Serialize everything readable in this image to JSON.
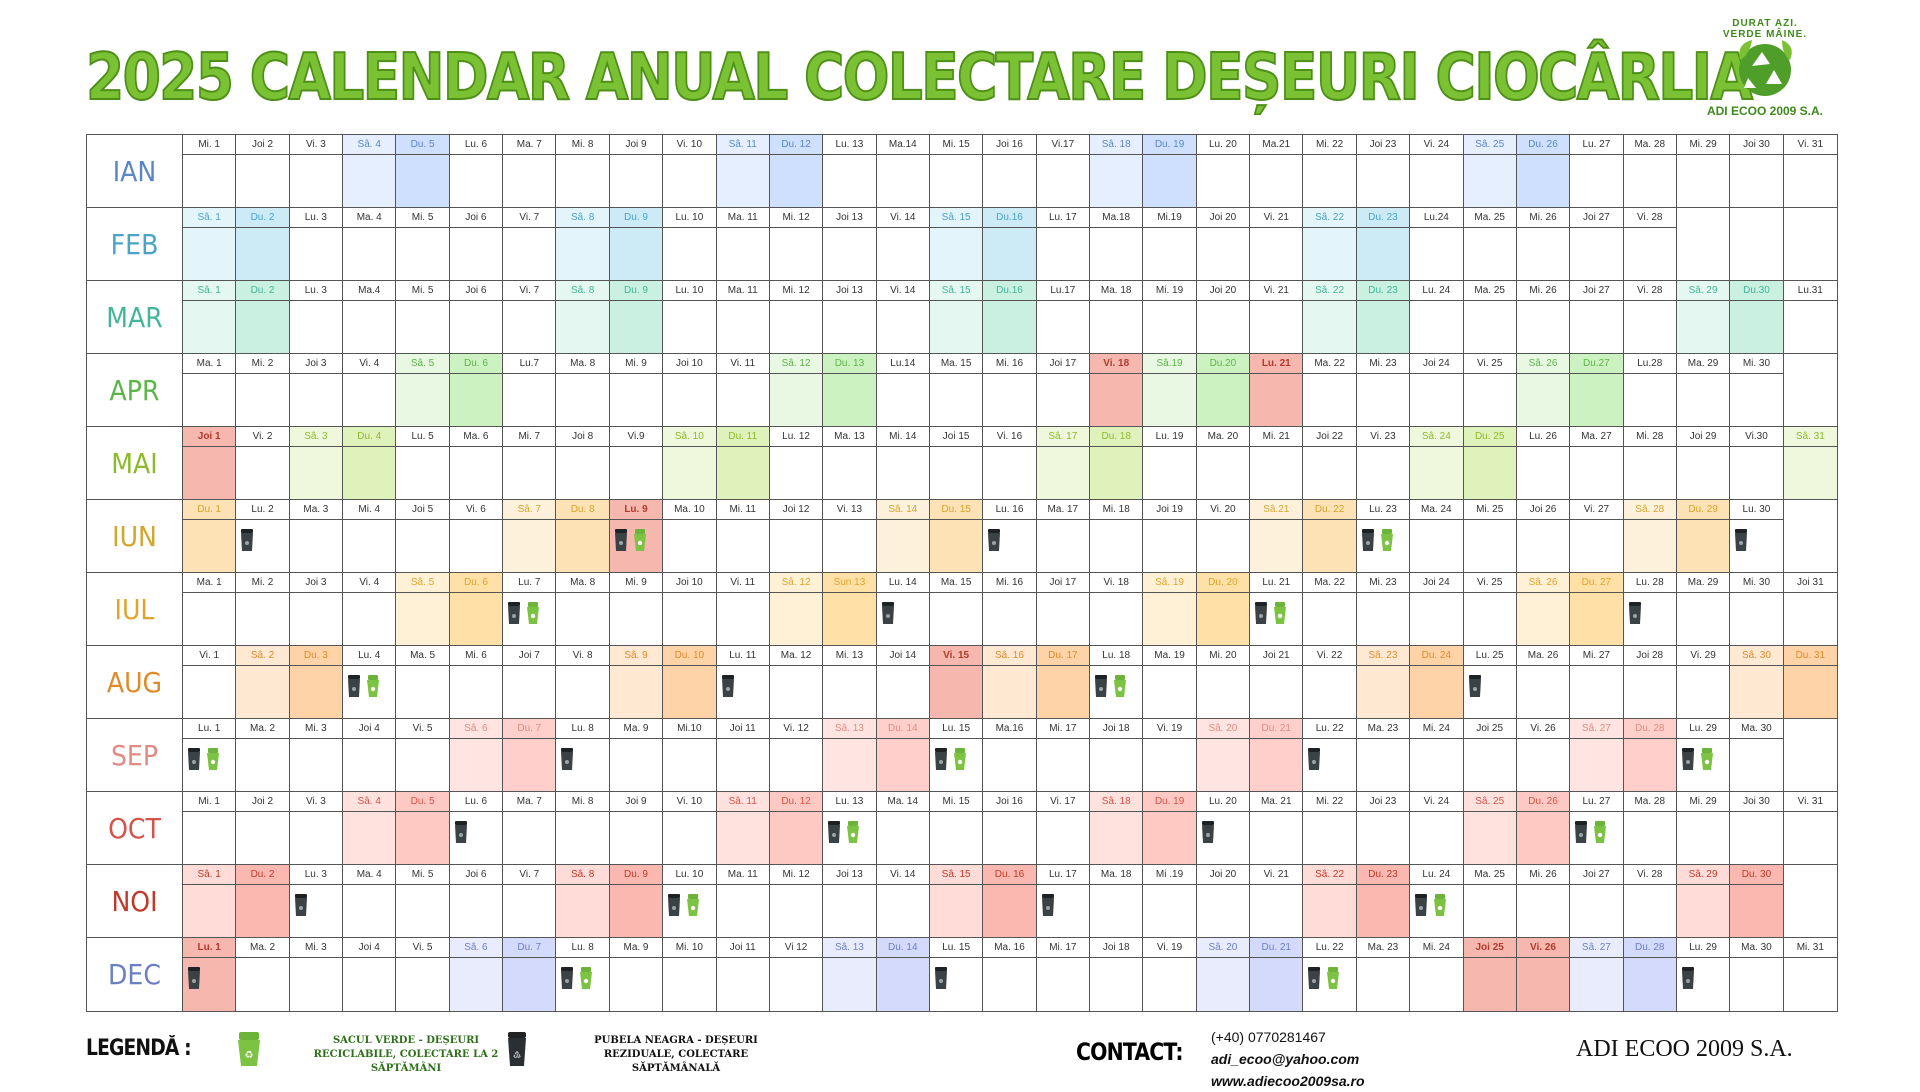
{
  "title": "2025 CALENDAR ANUAL COLECTARE DEȘEURI CIOCÂRLIA",
  "logo": {
    "arc_text": "DURAT AZI. VERDE MÂINE.",
    "caption": "ADI ECOO 2009 S.A."
  },
  "colors": {
    "title_green": "#7ac133",
    "green_bin": "#7cc243",
    "black_bin": "#3b4246",
    "holiday_fill": "#f5b7ae"
  },
  "months": [
    {
      "name": "IAN",
      "color": "#5b86c5",
      "wfill": [
        "#e6efff",
        "#cfe0ff"
      ],
      "days": [
        "Mi. 1",
        "Joi 2",
        "Vi. 3",
        "Sâ. 4",
        "Du. 5",
        "Lu. 6",
        "Ma. 7",
        "Mi. 8",
        "Joi 9",
        "Vi. 10",
        "Sâ. 11",
        "Du. 12",
        "Lu. 13",
        "Ma.14",
        "Mi. 15",
        "Joi 16",
        "Vi.17",
        "Sâ. 18",
        "Du. 19",
        "Lu. 20",
        "Ma.21",
        "Mi. 22",
        "Joi 23",
        "Vi. 24",
        "Sâ. 25",
        "Du. 26",
        "Lu. 27",
        "Ma. 28",
        "Mi. 29",
        "Joi 30",
        "Vi. 31"
      ],
      "bins": {}
    },
    {
      "name": "FEB",
      "color": "#4aa3c8",
      "wfill": [
        "#e4f4fb",
        "#cdebf7"
      ],
      "days": [
        "Sâ. 1",
        "Du. 2",
        "Lu. 3",
        "Ma. 4",
        "Mi. 5",
        "Joi 6",
        "Vi. 7",
        "Sâ. 8",
        "Du. 9",
        "Lu. 10",
        "Ma. 11",
        "Mi. 12",
        "Joi 13",
        "Vi. 14",
        "Sâ. 15",
        "Du.16",
        "Lu. 17",
        "Ma.18",
        "Mi.19",
        "Joi 20",
        "Vi. 21",
        "Sâ. 22",
        "Du. 23",
        "Lu.24",
        "Ma. 25",
        "Mi. 26",
        "Joi 27",
        "Vi. 28"
      ],
      "bins": {}
    },
    {
      "name": "MAR",
      "color": "#43b69a",
      "wfill": [
        "#e4f7f0",
        "#c9f0e0"
      ],
      "days": [
        "Sâ. 1",
        "Du. 2",
        "Lu. 3",
        "Ma.4",
        "Mi. 5",
        "Joi 6",
        "Vi. 7",
        "Sâ. 8",
        "Du. 9",
        "Lu. 10",
        "Ma. 11",
        "Mi. 12",
        "Joi 13",
        "Vi. 14",
        "Sâ. 15",
        "Du.16",
        "Lu.17",
        "Ma. 18",
        "Mi. 19",
        "Joi 20",
        "Vi. 21",
        "Sâ. 22",
        "Du. 23",
        "Lu. 24",
        "Ma. 25",
        "Mi. 26",
        "Joi 27",
        "Vi. 28",
        "Sâ. 29",
        "Du.30",
        "Lu.31"
      ],
      "bins": {}
    },
    {
      "name": "APR",
      "color": "#5cb548",
      "wfill": [
        "#e8f8e2",
        "#cdf2c2"
      ],
      "days": [
        "Ma. 1",
        "Mi. 2",
        "Joi 3",
        "Vi. 4",
        "Sâ. 5",
        "Du. 6",
        "Lu.7",
        "Ma. 8",
        "Mi. 9",
        "Joi 10",
        "Vi. 11",
        "Sâ. 12",
        "Du. 13",
        "Lu.14",
        "Ma. 15",
        "Mi. 16",
        "Joi 17",
        "Vi. 18",
        "Sâ.19",
        "Du.20",
        "Lu. 21",
        "Ma. 22",
        "Mi. 23",
        "Joi 24",
        "Vi. 25",
        "Sâ. 26",
        "Du.27",
        "Lu.28",
        "Ma. 29",
        "Mi. 30"
      ],
      "holidays": [
        18,
        21
      ],
      "bins": {}
    },
    {
      "name": "MAI",
      "color": "#8cba2a",
      "wfill": [
        "#eff8dc",
        "#e0f2bb"
      ],
      "days": [
        "Joi 1",
        "Vi. 2",
        "Sâ. 3",
        "Du. 4",
        "Lu. 5",
        "Ma. 6",
        "Mi. 7",
        "Joi 8",
        "Vi.9",
        "Sâ. 10",
        "Du. 11",
        "Lu. 12",
        "Ma. 13",
        "Mi. 14",
        "Joi 15",
        "Vi. 16",
        "Sâ. 17",
        "Du. 18",
        "Lu. 19",
        "Ma. 20",
        "Mi. 21",
        "Joi 22",
        "Vi. 23",
        "Sâ. 24",
        "Du. 25",
        "Lu. 26",
        "Ma. 27",
        "Mi. 28",
        "Joi 29",
        "Vi.30",
        "Sâ. 31"
      ],
      "holidays": [
        1
      ],
      "bins": {}
    },
    {
      "name": "IUN",
      "color": "#d4a52c",
      "wfill": [
        "#fdf1dc",
        "#fce2b4"
      ],
      "days": [
        "Du. 1",
        "Lu. 2",
        "Ma. 3",
        "Mi. 4",
        "Joi 5",
        "Vi. 6",
        "Sâ. 7",
        "Du. 8",
        "Lu. 9",
        "Ma. 10",
        "Mi. 11",
        "Joi 12",
        "Vi. 13",
        "Sâ. 14",
        "Du. 15",
        "Lu. 16",
        "Ma. 17",
        "Mi. 18",
        "Joi 19",
        "Vi. 20",
        "Sâ.21",
        "Du. 22",
        "Lu. 23",
        "Ma. 24",
        "Mi. 25",
        "Joi 26",
        "Vi. 27",
        "Sâ. 28",
        "Du. 29",
        "Lu. 30"
      ],
      "holidays": [
        9
      ],
      "bins": {
        "2": "b",
        "9": "bg",
        "16": "b",
        "23": "bg",
        "30": "b"
      }
    },
    {
      "name": "IUL",
      "color": "#e0a42a",
      "wfill": [
        "#fff1d6",
        "#ffe0a6"
      ],
      "days": [
        "Ma. 1",
        "Mi. 2",
        "Joi 3",
        "Vi. 4",
        "Sâ. 5",
        "Du. 6",
        "Lu. 7",
        "Ma. 8",
        "Mi. 9",
        "Joi 10",
        "Vi. 11",
        "Sâ. 12",
        "Sun 13",
        "Lu. 14",
        "Ma. 15",
        "Mi. 16",
        "Joi 17",
        "Vi. 18",
        "Sâ. 19",
        "Du. 20",
        "Lu. 21",
        "Ma. 22",
        "Mi. 23",
        "Joi 24",
        "Vi. 25",
        "Sâ. 26",
        "Du. 27",
        "Lu. 28",
        "Ma. 29",
        "Mi. 30",
        "Joi 31"
      ],
      "bins": {
        "7": "bg",
        "14": "b",
        "21": "bg",
        "28": "b"
      }
    },
    {
      "name": "AUG",
      "color": "#e08b2a",
      "wfill": [
        "#ffe9d3",
        "#ffd3a8"
      ],
      "days": [
        "Vi. 1",
        "Sâ. 2",
        "Du. 3",
        "Lu. 4",
        "Ma. 5",
        "Mi. 6",
        "Joi 7",
        "Vi. 8",
        "Sâ. 9",
        "Du. 10",
        "Lu. 11",
        "Ma. 12",
        "Mi. 13",
        "Joi 14",
        "Vi. 15",
        "Sâ. 16",
        "Du. 17",
        "Lu. 18",
        "Ma. 19",
        "Mi. 20",
        "Joi 21",
        "Vi. 22",
        "Sâ. 23",
        "Du. 24",
        "Lu. 25",
        "Ma. 26",
        "Mi. 27",
        "Joi 28",
        "Vi. 29",
        "Sâ. 30",
        "Du. 31"
      ],
      "holidays": [
        15
      ],
      "bins": {
        "4": "bg",
        "11": "b",
        "18": "bg",
        "25": "b"
      }
    },
    {
      "name": "SEP",
      "color": "#e08b84",
      "wfill": [
        "#ffe4e1",
        "#ffd0cb"
      ],
      "days": [
        "Lu. 1",
        "Ma. 2",
        "Mi. 3",
        "Joi 4",
        "Vi. 5",
        "Sâ. 6",
        "Du. 7",
        "Lu. 8",
        "Ma. 9",
        "Mi.10",
        "Joi 11",
        "Vi. 12",
        "Sâ. 13",
        "Du. 14",
        "Lu. 15",
        "Ma.16",
        "Mi. 17",
        "Joi 18",
        "Vi. 19",
        "Sâ. 20",
        "Du. 21",
        "Lu. 22",
        "Ma. 23",
        "Mi. 24",
        "Joi 25",
        "Vi. 26",
        "Sâ. 27",
        "Du. 28",
        "Lu. 29",
        "Ma. 30"
      ],
      "bins": {
        "1": "bg",
        "8": "b",
        "15": "bg",
        "22": "b",
        "29": "bg"
      }
    },
    {
      "name": "OCT",
      "color": "#d4534a",
      "wfill": [
        "#ffe1de",
        "#ffc9c3"
      ],
      "days": [
        "Mi. 1",
        "Joi 2",
        "Vi. 3",
        "Sâ. 4",
        "Du. 5",
        "Lu. 6",
        "Ma. 7",
        "Mi. 8",
        "Joi 9",
        "Vi. 10",
        "Sâ. 11",
        "Du. 12",
        "Lu. 13",
        "Ma. 14",
        "Mi. 15",
        "Joi 16",
        "Vi. 17",
        "Sâ. 18",
        "Du. 19",
        "Lu. 20",
        "Ma. 21",
        "Mi. 22",
        "Joi 23",
        "Vi. 24",
        "Sâ. 25",
        "Du. 26",
        "Lu. 27",
        "Ma. 28",
        "Mi. 29",
        "Joi 30",
        "Vi. 31"
      ],
      "bins": {
        "6": "b",
        "13": "bg",
        "20": "b",
        "27": "bg"
      }
    },
    {
      "name": "NOI",
      "color": "#c0392b",
      "wfill": [
        "#ffdcd8",
        "#fbb8b0"
      ],
      "days": [
        "Sâ. 1",
        "Du. 2",
        "Lu. 3",
        "Ma. 4",
        "Mi. 5",
        "Joi 6",
        "Vi. 7",
        "Sâ. 8",
        "Du. 9",
        "Lu. 10",
        "Ma. 11",
        "Mi. 12",
        "Joi 13",
        "Vi. 14",
        "Sâ. 15",
        "Du. 16",
        "Lu. 17",
        "Ma. 18",
        "Mi .19",
        "Joi 20",
        "Vi. 21",
        "Sâ. 22",
        "Du. 23",
        "Lu. 24",
        "Ma. 25",
        "Mi. 26",
        "Joi 27",
        "Vi. 28",
        "Sâ. 29",
        "Du. 30"
      ],
      "bins": {
        "3": "b",
        "10": "bg",
        "17": "b",
        "24": "bg"
      }
    },
    {
      "name": "DEC",
      "color": "#6b7fc4",
      "wfill": [
        "#e9ecfd",
        "#d4dafb"
      ],
      "days": [
        "Lu. 1",
        "Ma. 2",
        "Mi. 3",
        "Joi 4",
        "Vi. 5",
        "Sâ. 6",
        "Du. 7",
        "Lu. 8",
        "Ma. 9",
        "Mi. 10",
        "Joi 11",
        "Vi 12",
        "Sâ. 13",
        "Du. 14",
        "Lu. 15",
        "Ma. 16",
        "Mi. 17",
        "Joi 18",
        "Vi. 19",
        "Sâ. 20",
        "Du. 21",
        "Lu. 22",
        "Ma. 23",
        "Mi. 24",
        "Joi 25",
        "Vi. 26",
        "Sâ. 27",
        "Du. 28",
        "Lu. 29",
        "Ma. 30",
        "Mi. 31"
      ],
      "holidays": [
        1,
        25,
        26
      ],
      "bins": {
        "1": "b",
        "8": "bg",
        "15": "b",
        "22": "bg",
        "29": "b"
      }
    }
  ],
  "legend": {
    "title": "LEGENDĂ :",
    "green_text": "SACUL VERDE - DEȘEURI RECICLABILE, COLECTARE LA 2 SĂPTĂMÂNI",
    "black_text": "PUBELA NEAGRA - DEȘEURI REZIDUALE, COLECTARE SĂPTĂMÂNALĂ"
  },
  "contact": {
    "label": "CONTACT:",
    "phone": "(+40) 0770281467",
    "email": "adi_ecoo@yahoo.com",
    "website": "www.adiecoo2009sa.ro"
  },
  "company": "ADI ECOO 2009 S.A."
}
